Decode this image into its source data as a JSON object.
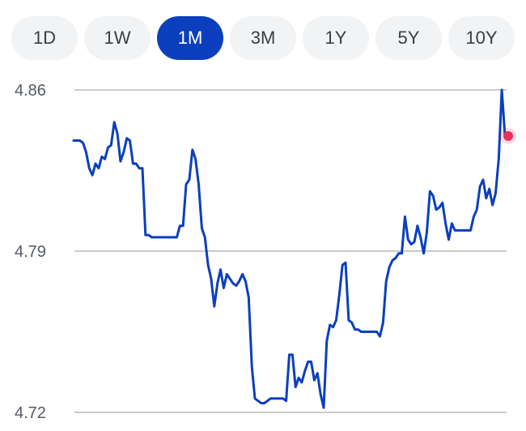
{
  "range_selector": {
    "options": [
      "1D",
      "1W",
      "1M",
      "3M",
      "1Y",
      "5Y",
      "10Y"
    ],
    "selected": "1M",
    "active_color": "#0b3fbd"
  },
  "chart_data": {
    "type": "line",
    "title": "",
    "xlabel": "",
    "ylabel": "",
    "ylim": [
      4.72,
      4.86
    ],
    "yticks": [
      4.86,
      4.79,
      4.72
    ],
    "grid": "horizontal",
    "line_color": "#0b3fbd",
    "marker_color": "#e8325a",
    "series": [
      {
        "values": [
          4.838,
          4.838,
          4.838,
          4.837,
          4.833,
          4.826,
          4.823,
          4.828,
          4.826,
          4.831,
          4.83,
          4.835,
          4.836,
          4.846,
          4.841,
          4.829,
          4.833,
          4.839,
          4.838,
          4.828,
          4.828,
          4.826,
          4.826,
          4.797,
          4.797,
          4.796,
          4.796,
          4.796,
          4.796,
          4.796,
          4.796,
          4.796,
          4.796,
          4.796,
          4.801,
          4.801,
          4.819,
          4.821,
          4.834,
          4.83,
          4.819,
          4.8,
          4.796,
          4.784,
          4.778,
          4.766,
          4.776,
          4.782,
          4.774,
          4.78,
          4.778,
          4.776,
          4.775,
          4.777,
          4.78,
          4.777,
          4.77,
          4.74,
          4.726,
          4.725,
          4.724,
          4.724,
          4.725,
          4.726,
          4.726,
          4.726,
          4.726,
          4.726,
          4.725,
          4.745,
          4.745,
          4.731,
          4.735,
          4.733,
          4.738,
          4.742,
          4.742,
          4.734,
          4.737,
          4.728,
          4.722,
          4.751,
          4.758,
          4.757,
          4.76,
          4.771,
          4.784,
          4.785,
          4.76,
          4.759,
          4.756,
          4.756,
          4.755,
          4.755,
          4.755,
          4.755,
          4.755,
          4.755,
          4.753,
          4.759,
          4.777,
          4.783,
          4.786,
          4.787,
          4.789,
          4.789,
          4.805,
          4.795,
          4.793,
          4.794,
          4.801,
          4.796,
          4.789,
          4.798,
          4.816,
          4.814,
          4.808,
          4.809,
          4.811,
          4.802,
          4.795,
          4.802,
          4.799,
          4.799,
          4.799,
          4.799,
          4.799,
          4.799,
          4.805,
          4.808,
          4.818,
          4.821,
          4.813,
          4.817,
          4.81,
          4.815,
          4.83,
          4.86,
          4.84
        ]
      }
    ]
  }
}
